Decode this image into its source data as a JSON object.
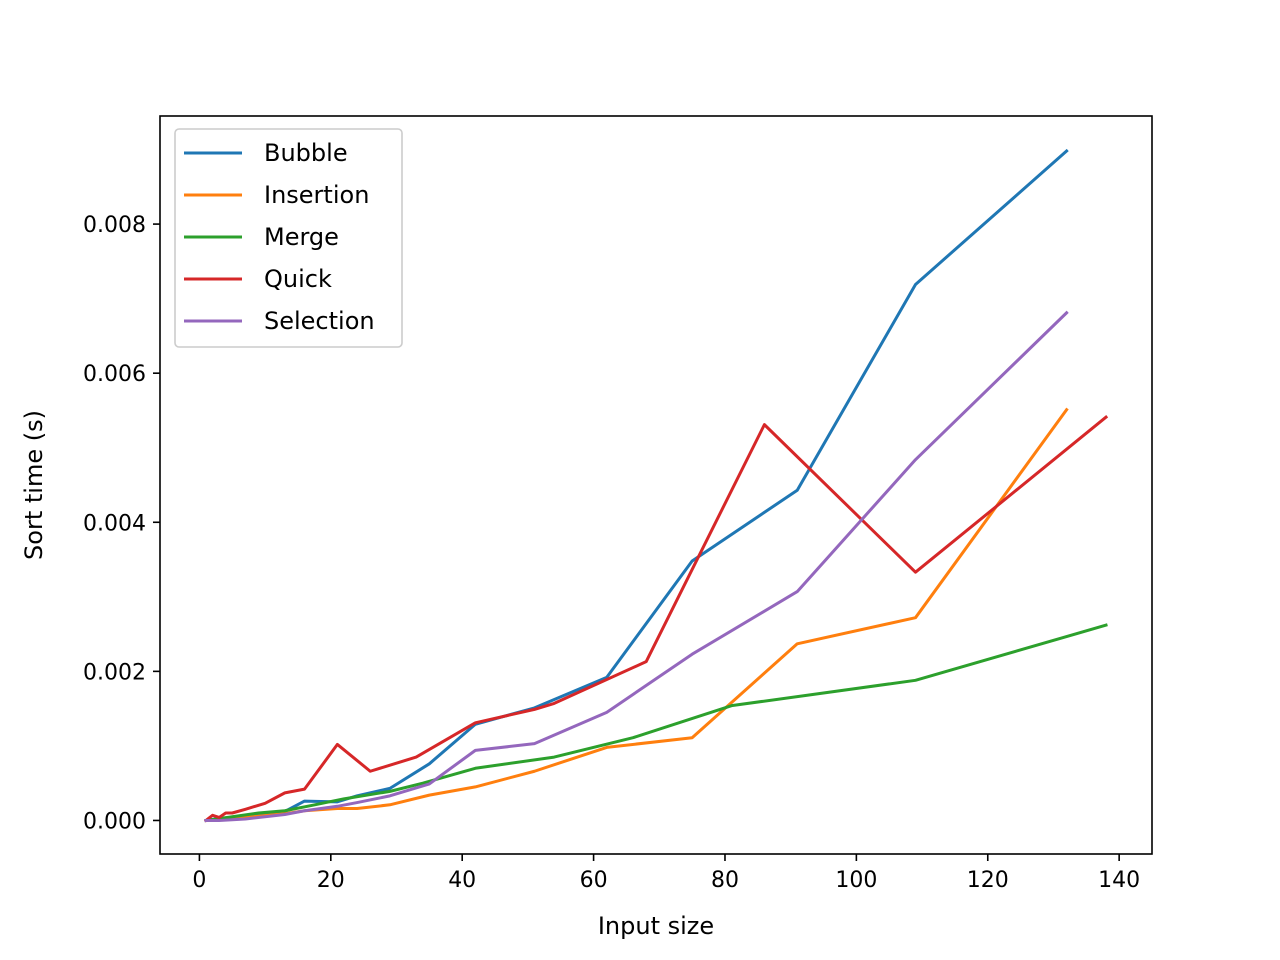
{
  "chart_data": {
    "type": "line",
    "title": "",
    "xlabel": "Input size",
    "ylabel": "Sort time (s)",
    "xlim": [
      -6,
      145
    ],
    "ylim": [
      -0.00045,
      0.00945
    ],
    "x_ticks": [
      0,
      20,
      40,
      60,
      80,
      100,
      120,
      140
    ],
    "x_tick_labels": [
      "0",
      "20",
      "40",
      "60",
      "80",
      "100",
      "120",
      "140"
    ],
    "y_ticks": [
      0.0,
      0.002,
      0.004,
      0.006,
      0.008
    ],
    "y_tick_labels": [
      "0.000",
      "0.002",
      "0.004",
      "0.006",
      "0.008"
    ],
    "grid": false,
    "legend_position": "top-left",
    "series": [
      {
        "name": "Bubble",
        "color": "#1f77b4",
        "points": [
          [
            1,
            0.0
          ],
          [
            3,
            3e-05
          ],
          [
            7,
            5e-05
          ],
          [
            13,
            0.00012
          ],
          [
            16,
            0.00026
          ],
          [
            21,
            0.00025
          ],
          [
            24,
            0.00033
          ],
          [
            29,
            0.00043
          ],
          [
            35,
            0.00076
          ],
          [
            42,
            0.00129
          ],
          [
            51,
            0.00151
          ],
          [
            62,
            0.00192
          ],
          [
            75,
            0.00348
          ],
          [
            91,
            0.00443
          ],
          [
            109,
            0.00719
          ],
          [
            132,
            0.00898
          ]
        ]
      },
      {
        "name": "Insertion",
        "color": "#ff7f0e",
        "points": [
          [
            1,
            0.0
          ],
          [
            3,
            1e-05
          ],
          [
            7,
            4e-05
          ],
          [
            13,
            9e-05
          ],
          [
            16,
            0.00013
          ],
          [
            21,
            0.00016
          ],
          [
            24,
            0.00016
          ],
          [
            29,
            0.00021
          ],
          [
            35,
            0.00034
          ],
          [
            42,
            0.00045
          ],
          [
            51,
            0.00066
          ],
          [
            62,
            0.00098
          ],
          [
            75,
            0.00111
          ],
          [
            91,
            0.00237
          ],
          [
            109,
            0.00272
          ],
          [
            132,
            0.00551
          ]
        ]
      },
      {
        "name": "Merge",
        "color": "#2ca02c",
        "points": [
          [
            1,
            0.0
          ],
          [
            5,
            5e-05
          ],
          [
            9,
            0.0001
          ],
          [
            13,
            0.00013
          ],
          [
            17,
            0.0002
          ],
          [
            22,
            0.00029
          ],
          [
            29,
            0.00039
          ],
          [
            34,
            0.0005
          ],
          [
            42,
            0.0007
          ],
          [
            54,
            0.00085
          ],
          [
            66,
            0.00111
          ],
          [
            81,
            0.00154
          ],
          [
            109,
            0.00188
          ],
          [
            138,
            0.00262
          ]
        ]
      },
      {
        "name": "Quick",
        "color": "#d62728",
        "points": [
          [
            1,
            0.0
          ],
          [
            2,
            7e-05
          ],
          [
            3,
            4e-05
          ],
          [
            4,
            0.0001
          ],
          [
            5,
            0.0001
          ],
          [
            7,
            0.00015
          ],
          [
            10,
            0.00023
          ],
          [
            13,
            0.00037
          ],
          [
            16,
            0.00042
          ],
          [
            21,
            0.00102
          ],
          [
            26,
            0.00066
          ],
          [
            33,
            0.00085
          ],
          [
            42,
            0.00131
          ],
          [
            51,
            0.00149
          ],
          [
            54,
            0.00157
          ],
          [
            68,
            0.00213
          ],
          [
            86,
            0.00531
          ],
          [
            109,
            0.00333
          ],
          [
            138,
            0.00541
          ]
        ]
      },
      {
        "name": "Selection",
        "color": "#9467bd",
        "points": [
          [
            1,
            0.0
          ],
          [
            3,
            0.0
          ],
          [
            7,
            2e-05
          ],
          [
            13,
            8e-05
          ],
          [
            16,
            0.00013
          ],
          [
            21,
            0.00019
          ],
          [
            24,
            0.00024
          ],
          [
            29,
            0.00033
          ],
          [
            35,
            0.00049
          ],
          [
            42,
            0.00094
          ],
          [
            51,
            0.00103
          ],
          [
            62,
            0.00145
          ],
          [
            75,
            0.00223
          ],
          [
            91,
            0.00307
          ],
          [
            109,
            0.00484
          ],
          [
            132,
            0.00681
          ]
        ]
      }
    ]
  }
}
